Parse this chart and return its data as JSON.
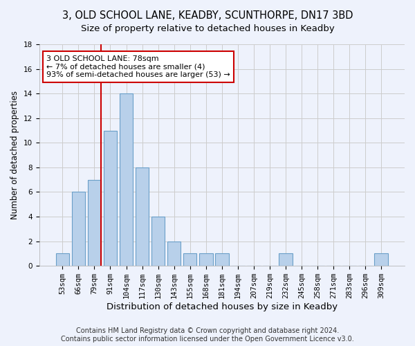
{
  "title1": "3, OLD SCHOOL LANE, KEADBY, SCUNTHORPE, DN17 3BD",
  "title2": "Size of property relative to detached houses in Keadby",
  "xlabel": "Distribution of detached houses by size in Keadby",
  "ylabel": "Number of detached properties",
  "footnote1": "Contains HM Land Registry data © Crown copyright and database right 2024.",
  "footnote2": "Contains public sector information licensed under the Open Government Licence v3.0.",
  "categories": [
    "53sqm",
    "66sqm",
    "79sqm",
    "91sqm",
    "104sqm",
    "117sqm",
    "130sqm",
    "143sqm",
    "155sqm",
    "168sqm",
    "181sqm",
    "194sqm",
    "207sqm",
    "219sqm",
    "232sqm",
    "245sqm",
    "258sqm",
    "271sqm",
    "283sqm",
    "296sqm",
    "309sqm"
  ],
  "values": [
    1,
    6,
    7,
    11,
    14,
    8,
    4,
    2,
    1,
    1,
    1,
    0,
    0,
    0,
    1,
    0,
    0,
    0,
    0,
    0,
    1
  ],
  "bar_color": "#b8d0ea",
  "bar_edgecolor": "#6a9fc8",
  "highlight_line_index": 2,
  "highlight_line_color": "#cc0000",
  "annotation_text": "3 OLD SCHOOL LANE: 78sqm\n← 7% of detached houses are smaller (4)\n93% of semi-detached houses are larger (53) →",
  "annotation_box_color": "#ffffff",
  "annotation_box_edgecolor": "#cc0000",
  "ylim": [
    0,
    18
  ],
  "yticks": [
    0,
    2,
    4,
    6,
    8,
    10,
    12,
    14,
    16,
    18
  ],
  "background_color": "#eef2fc",
  "grid_color": "#cccccc",
  "title1_fontsize": 10.5,
  "title2_fontsize": 9.5,
  "axis_label_fontsize": 8.5,
  "tick_fontsize": 7.5,
  "footnote_fontsize": 7
}
